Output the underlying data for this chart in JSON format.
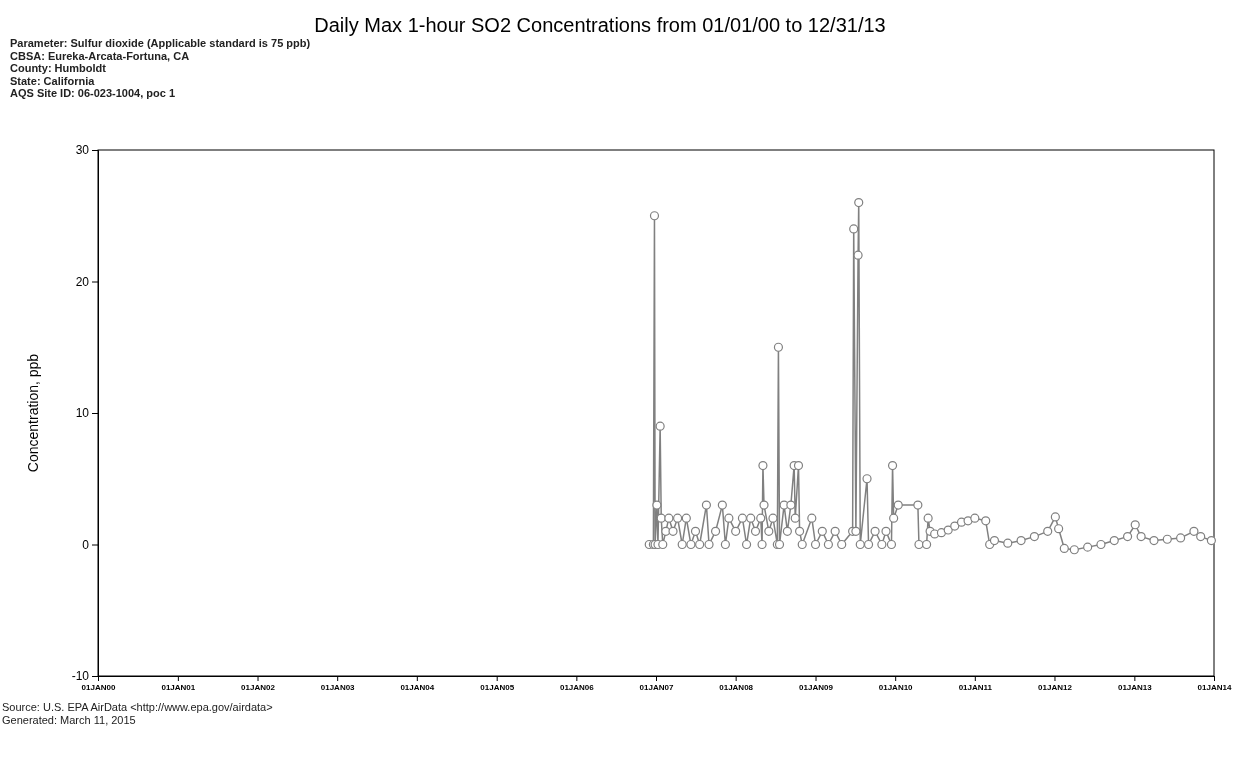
{
  "chart_data": {
    "type": "line",
    "title": "Daily Max 1-hour SO2 Concentrations from 01/01/00 to 12/31/13",
    "subtitle": "Parameter: Sulfur dioxide (Applicable standard is 75 ppb)\nCBSA: Eureka-Arcata-Fortuna, CA\nCounty: Humboldt\nState: California\nAQS Site ID: 06-023-1004, poc 1",
    "ylabel": "Concentration, ppb",
    "annotations": [
      "Source: U.S. EPA AirData <http://www.epa.gov/airdata>",
      "Generated: March 11, 2015"
    ],
    "xlim": [
      "2000-01-01",
      "2014-01-01"
    ],
    "xticks": [
      {
        "value": "2000-01-01",
        "label": "01JAN00"
      },
      {
        "value": "2001-01-01",
        "label": "01JAN01"
      },
      {
        "value": "2002-01-01",
        "label": "01JAN02"
      },
      {
        "value": "2003-01-01",
        "label": "01JAN03"
      },
      {
        "value": "2004-01-01",
        "label": "01JAN04"
      },
      {
        "value": "2005-01-01",
        "label": "01JAN05"
      },
      {
        "value": "2006-01-01",
        "label": "01JAN06"
      },
      {
        "value": "2007-01-01",
        "label": "01JAN07"
      },
      {
        "value": "2008-01-01",
        "label": "01JAN08"
      },
      {
        "value": "2009-01-01",
        "label": "01JAN09"
      },
      {
        "value": "2010-01-01",
        "label": "01JAN10"
      },
      {
        "value": "2011-01-01",
        "label": "01JAN11"
      },
      {
        "value": "2012-01-01",
        "label": "01JAN12"
      },
      {
        "value": "2013-01-01",
        "label": "01JAN13"
      },
      {
        "value": "2014-01-01",
        "label": "01JAN14"
      }
    ],
    "ylim": [
      -10,
      30
    ],
    "yticks": [
      -10,
      0,
      10,
      20,
      30
    ],
    "grid": false,
    "marker": "circle",
    "line_style": "solid",
    "series": [
      {
        "color": "#808080",
        "x": [
          "2006-12-01",
          "2006-12-20",
          "2006-12-25",
          "2006-12-28",
          "2007-01-05",
          "2007-01-10",
          "2007-01-20",
          "2007-01-25",
          "2007-02-01",
          "2007-02-15",
          "2007-03-01",
          "2007-03-20",
          "2007-04-10",
          "2007-05-01",
          "2007-05-20",
          "2007-06-10",
          "2007-07-01",
          "2007-07-20",
          "2007-08-20",
          "2007-09-01",
          "2007-10-01",
          "2007-11-01",
          "2007-11-15",
          "2007-12-01",
          "2008-01-01",
          "2008-02-01",
          "2008-02-20",
          "2008-03-10",
          "2008-04-01",
          "2008-04-25",
          "2008-05-01",
          "2008-05-05",
          "2008-05-10",
          "2008-06-01",
          "2008-06-20",
          "2008-07-10",
          "2008-07-15",
          "2008-07-20",
          "2008-08-10",
          "2008-08-25",
          "2008-09-10",
          "2008-09-25",
          "2008-09-30",
          "2008-10-15",
          "2008-10-20",
          "2008-11-01",
          "2008-12-15",
          "2009-01-01",
          "2009-02-01",
          "2009-03-01",
          "2009-04-01",
          "2009-05-01",
          "2009-06-20",
          "2009-06-25",
          "2009-07-05",
          "2009-07-15",
          "2009-07-18",
          "2009-07-25",
          "2009-08-25",
          "2009-09-01",
          "2009-10-01",
          "2009-11-01",
          "2009-11-20",
          "2009-12-15",
          "2009-12-20",
          "2009-12-25",
          "2010-01-15",
          "2010-04-15",
          "2010-04-20",
          "2010-05-25",
          "2010-06-01",
          "2010-06-10",
          "2010-07-01",
          "2010-08-01",
          "2010-09-01",
          "2010-10-01",
          "2010-11-01",
          "2010-12-01",
          "2011-01-01",
          "2011-02-20",
          "2011-03-10",
          "2011-04-01",
          "2011-06-01",
          "2011-08-01",
          "2011-10-01",
          "2011-12-01",
          "2012-01-05",
          "2012-01-20",
          "2012-02-15",
          "2012-04-01",
          "2012-06-01",
          "2012-08-01",
          "2012-10-01",
          "2012-12-01",
          "2013-01-05",
          "2013-02-01",
          "2013-04-01",
          "2013-06-01",
          "2013-08-01",
          "2013-10-01",
          "2013-11-01",
          "2013-12-20"
        ],
        "values": [
          0,
          0,
          25,
          0,
          3,
          0,
          9,
          2,
          0,
          1,
          2,
          1,
          2,
          0,
          2,
          0,
          1,
          0,
          3,
          0,
          1,
          3,
          0,
          2,
          1,
          2,
          0,
          2,
          1,
          2,
          0,
          6,
          3,
          1,
          2,
          0,
          15,
          0,
          3,
          1,
          3,
          6,
          2,
          6,
          1,
          0,
          2,
          0,
          1,
          0,
          1,
          0,
          1,
          24,
          1,
          22,
          26,
          0,
          5,
          0,
          1,
          0,
          1,
          0,
          6,
          2,
          3,
          3,
          0,
          0,
          2,
          1,
          0.8,
          0.9,
          1.1,
          1.4,
          1.7,
          1.8,
          2,
          1.8,
          0,
          0.3,
          0.1,
          0.3,
          0.6,
          1,
          2.1,
          1.2,
          -0.3,
          -0.4,
          -0.2,
          0,
          0.3,
          0.6,
          1.5,
          0.6,
          0.3,
          0.4,
          0.5,
          1,
          0.6,
          0.3
        ]
      }
    ]
  }
}
